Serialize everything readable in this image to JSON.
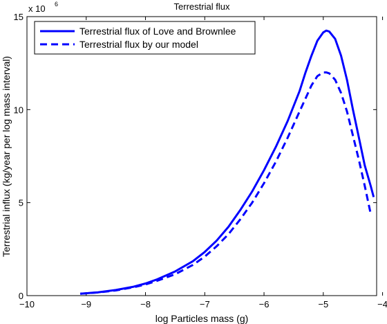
{
  "chart_data": {
    "type": "line",
    "title": "Terrestrial flux",
    "xlabel": "log Particles mass (g)",
    "ylabel": "Terrestrial influx (kg/year per log mass interval)",
    "y_scale_label": "x 10",
    "y_scale_exponent": "6",
    "xlim": [
      -10,
      -4.1
    ],
    "ylim": [
      0,
      15
    ],
    "x_ticks": [
      -10,
      -9,
      -8,
      -7,
      -6,
      -5,
      -4
    ],
    "x_tick_labels": [
      "−10",
      "−9",
      "−8",
      "−7",
      "−6",
      "−5",
      "−4"
    ],
    "y_ticks": [
      0,
      5,
      10,
      15
    ],
    "y_tick_labels": [
      "0",
      "5",
      "10",
      "15"
    ],
    "grid": false,
    "legend_position": "top-left",
    "series": [
      {
        "name": "Terrestrial flux of Love and Brownlee",
        "color": "#0000ff",
        "style": "solid",
        "x": [
          -9.1,
          -8.8,
          -8.5,
          -8.2,
          -8.0,
          -7.8,
          -7.5,
          -7.2,
          -7.0,
          -6.8,
          -6.6,
          -6.4,
          -6.2,
          -6.0,
          -5.8,
          -5.6,
          -5.4,
          -5.3,
          -5.2,
          -5.1,
          -5.0,
          -4.95,
          -4.9,
          -4.8,
          -4.7,
          -4.6,
          -4.5,
          -4.4,
          -4.3,
          -4.2,
          -4.15
        ],
        "y": [
          0.1,
          0.18,
          0.3,
          0.48,
          0.65,
          0.88,
          1.3,
          1.85,
          2.35,
          2.95,
          3.7,
          4.6,
          5.6,
          6.75,
          8.0,
          9.4,
          11.0,
          12.0,
          12.9,
          13.7,
          14.15,
          14.25,
          14.2,
          13.8,
          12.9,
          11.6,
          10.0,
          8.5,
          7.0,
          5.9,
          5.3
        ]
      },
      {
        "name": "Terrestrial flux by our model",
        "color": "#0000ff",
        "style": "dashed",
        "x": [
          -9.1,
          -8.8,
          -8.5,
          -8.2,
          -8.0,
          -7.8,
          -7.5,
          -7.2,
          -7.0,
          -6.8,
          -6.6,
          -6.4,
          -6.2,
          -6.0,
          -5.8,
          -5.6,
          -5.4,
          -5.3,
          -5.2,
          -5.1,
          -5.0,
          -4.95,
          -4.9,
          -4.8,
          -4.7,
          -4.6,
          -4.5,
          -4.4,
          -4.3,
          -4.2
        ],
        "y": [
          0.1,
          0.17,
          0.28,
          0.45,
          0.6,
          0.8,
          1.15,
          1.65,
          2.1,
          2.65,
          3.3,
          4.1,
          5.0,
          6.05,
          7.2,
          8.5,
          9.9,
          10.6,
          11.3,
          11.8,
          12.0,
          12.0,
          11.95,
          11.6,
          10.9,
          9.9,
          8.6,
          7.3,
          5.9,
          4.4
        ]
      }
    ]
  }
}
